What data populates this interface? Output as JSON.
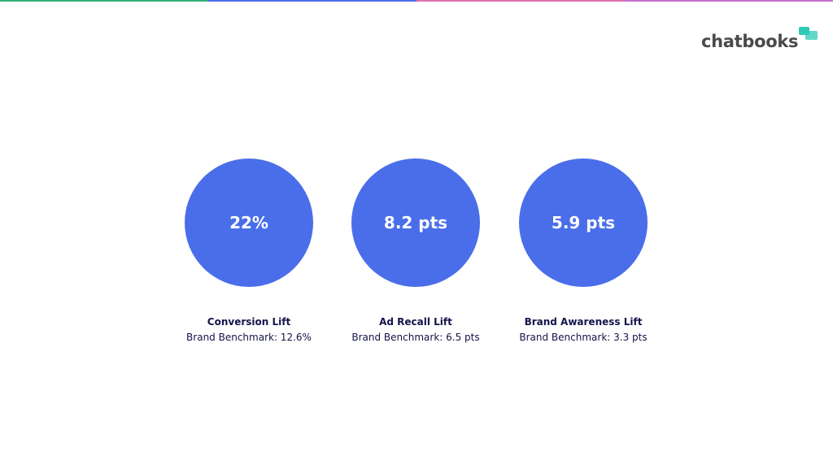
{
  "colors": {
    "circle": "#4a6ee9",
    "text_dark": "#14134a",
    "logo_text": "#4a4a4a",
    "logo_accent": "#2ec9b8",
    "top_bar": [
      "#38b07a",
      "#4a6ee9",
      "#e070b0",
      "#c86fd0"
    ]
  },
  "logo": {
    "text": "chatbooks",
    "mark_icon": "speech-bubbles-icon"
  },
  "metrics": [
    {
      "value": "22%",
      "label": "Conversion Lift",
      "benchmark": "Brand Benchmark: 12.6%"
    },
    {
      "value": "8.2 pts",
      "label": "Ad Recall Lift",
      "benchmark": "Brand Benchmark: 6.5 pts"
    },
    {
      "value": "5.9 pts",
      "label": "Brand Awareness Lift",
      "benchmark": "Brand Benchmark: 3.3 pts"
    }
  ]
}
